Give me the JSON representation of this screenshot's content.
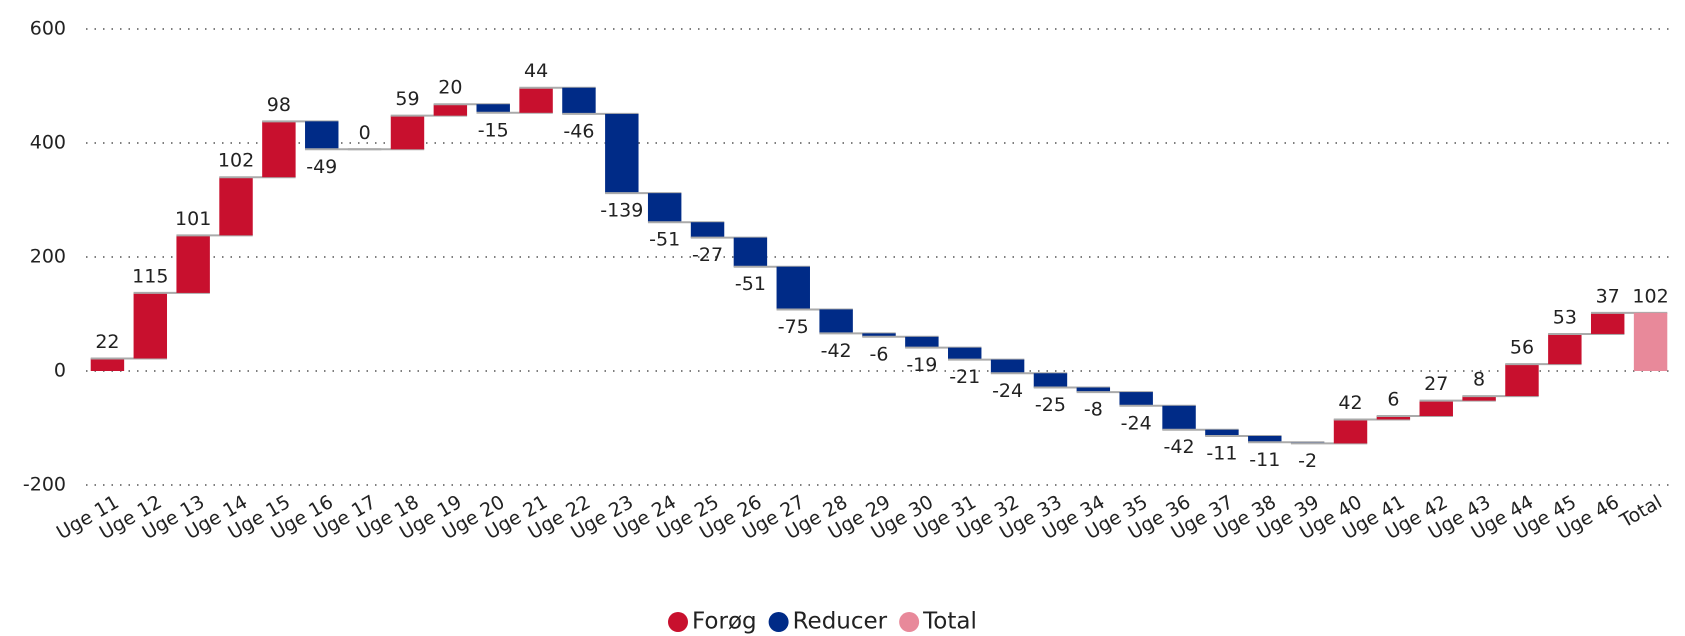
{
  "chart_data": {
    "type": "waterfall",
    "categories": [
      "Uge 11",
      "Uge 12",
      "Uge 13",
      "Uge 14",
      "Uge 15",
      "Uge 16",
      "Uge 17",
      "Uge 18",
      "Uge 19",
      "Uge 20",
      "Uge 21",
      "Uge 22",
      "Uge 23",
      "Uge 24",
      "Uge 25",
      "Uge 26",
      "Uge 27",
      "Uge 28",
      "Uge 29",
      "Uge 30",
      "Uge 31",
      "Uge 32",
      "Uge 33",
      "Uge 34",
      "Uge 35",
      "Uge 36",
      "Uge 37",
      "Uge 38",
      "Uge 39",
      "Uge 40",
      "Uge 41",
      "Uge 42",
      "Uge 43",
      "Uge 44",
      "Uge 45",
      "Uge 46",
      "Total"
    ],
    "values": [
      22,
      115,
      101,
      102,
      98,
      -49,
      0,
      59,
      20,
      -15,
      44,
      -46,
      -139,
      -51,
      -27,
      -51,
      -75,
      -42,
      -6,
      -19,
      -21,
      -24,
      -25,
      -8,
      -24,
      -42,
      -11,
      -11,
      -2,
      42,
      6,
      27,
      8,
      56,
      53,
      37,
      102
    ],
    "series": [
      {
        "name": "Forøg",
        "color": "#c8102e"
      },
      {
        "name": "Reducer",
        "color": "#002b87"
      },
      {
        "name": "Total",
        "color": "#e8899a"
      }
    ],
    "ylim": [
      -200,
      600
    ],
    "yticks": [
      -200,
      0,
      200,
      400,
      600
    ],
    "grid": true
  }
}
